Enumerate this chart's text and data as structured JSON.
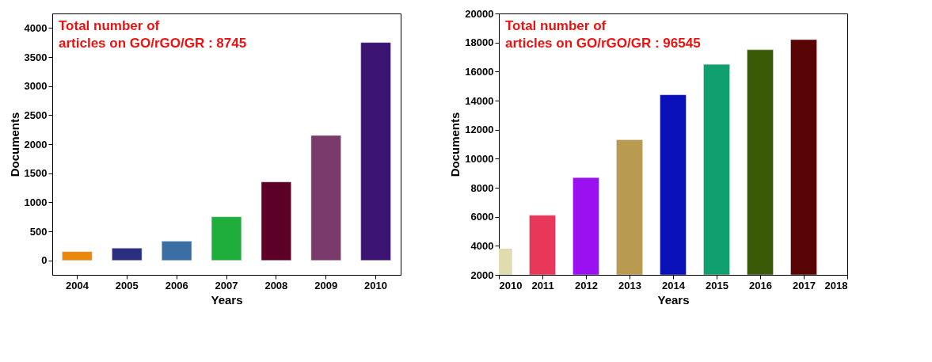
{
  "chart_data": [
    {
      "type": "bar",
      "categories": [
        "2004",
        "2005",
        "2006",
        "2007",
        "2008",
        "2009",
        "2010"
      ],
      "values": [
        150,
        210,
        330,
        750,
        1350,
        2150,
        3750
      ],
      "colors": [
        "#e8890c",
        "#2a2f80",
        "#3a6ea5",
        "#1fae3c",
        "#5c0028",
        "#7a3a6a",
        "#3a1470"
      ],
      "xlabel": "Years",
      "ylabel": "Documents",
      "ylim": [
        -250,
        4250
      ],
      "yticks": [
        0,
        500,
        1000,
        1500,
        2000,
        2500,
        3000,
        3500,
        4000
      ],
      "grid": false,
      "annotations": [
        "Total number of\narticles on GO/rGO/GR : 8745"
      ]
    },
    {
      "type": "bar",
      "x": [
        2010,
        2011,
        2012,
        2013,
        2014,
        2015,
        2016,
        2017
      ],
      "values": [
        3800,
        6100,
        8700,
        11300,
        14400,
        16500,
        17500,
        18200
      ],
      "colors": [
        "#e0dcb0",
        "#e8385a",
        "#9b10f0",
        "#b89a50",
        "#0a10b8",
        "#10a070",
        "#3a5a08",
        "#5a0505"
      ],
      "xlabel": "Years",
      "ylabel": "Documents",
      "xlim": [
        2010,
        2018
      ],
      "xticks": [
        2010,
        2011,
        2012,
        2013,
        2014,
        2015,
        2016,
        2017,
        2018
      ],
      "ylim": [
        2000,
        20000
      ],
      "yticks": [
        2000,
        4000,
        6000,
        8000,
        10000,
        12000,
        14000,
        16000,
        18000,
        20000
      ],
      "grid": false,
      "annotations": [
        "Total number of\narticles on GO/rGO/GR : 96545"
      ]
    }
  ]
}
